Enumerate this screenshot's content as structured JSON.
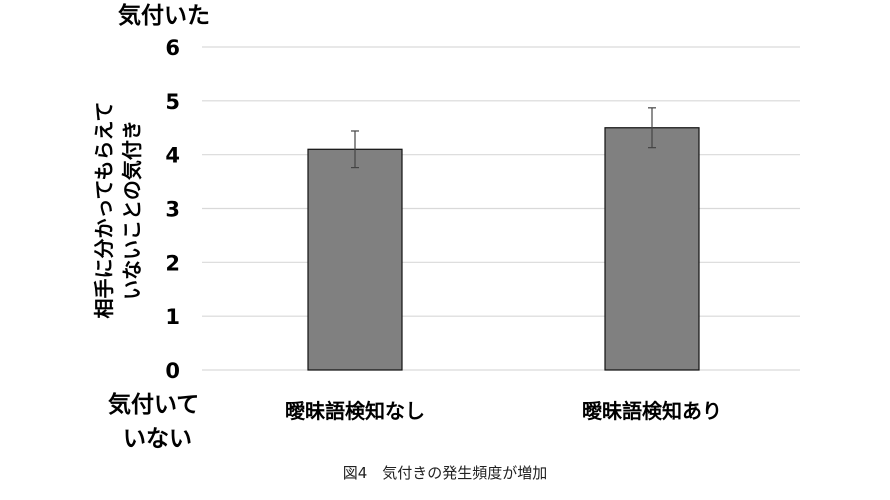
{
  "chart_data": {
    "type": "bar",
    "categories": [
      "曖昧語検知なし",
      "曖昧語検知あり"
    ],
    "values": [
      4.1,
      4.5
    ],
    "error": [
      0.34,
      0.37
    ],
    "ylim": [
      0,
      6
    ],
    "yticks": [
      0,
      1,
      2,
      3,
      4,
      5,
      6
    ],
    "ylabel": [
      "相手に分かってもらえて",
      "いないことの気付き"
    ],
    "ytop_label": "気付いた",
    "ybottom_label": [
      "気付いて",
      "いない"
    ],
    "grid": true,
    "bar_color": "#808080"
  },
  "caption": "図4　気付きの発生頻度が増加"
}
